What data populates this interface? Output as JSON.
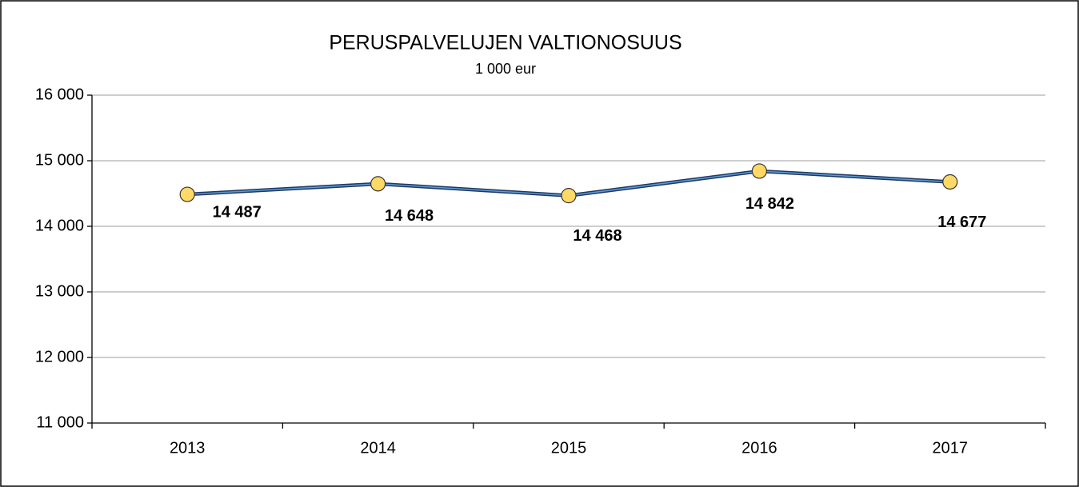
{
  "chart_data": {
    "type": "line",
    "title": "PERUSPALVELUJEN VALTIONOSUUS",
    "subtitle": "1 000 eur",
    "categories": [
      "2013",
      "2014",
      "2015",
      "2016",
      "2017"
    ],
    "series": [
      {
        "name": "Peruspalvelujen valtionosuus",
        "color": "#1f3864",
        "values": [
          14487,
          14648,
          14468,
          14842,
          14677
        ],
        "value_labels": [
          "14 487",
          "14 648",
          "14 468",
          "14 842",
          "14 677"
        ]
      }
    ],
    "ylim": [
      11000,
      16000
    ],
    "yticks": [
      {
        "value": 11000,
        "label": "11 000"
      },
      {
        "value": 12000,
        "label": "12 000"
      },
      {
        "value": 13000,
        "label": "13 000"
      },
      {
        "value": 14000,
        "label": "14 000"
      },
      {
        "value": 15000,
        "label": "15 000"
      },
      {
        "value": 16000,
        "label": "16 000"
      }
    ],
    "grid": true
  }
}
